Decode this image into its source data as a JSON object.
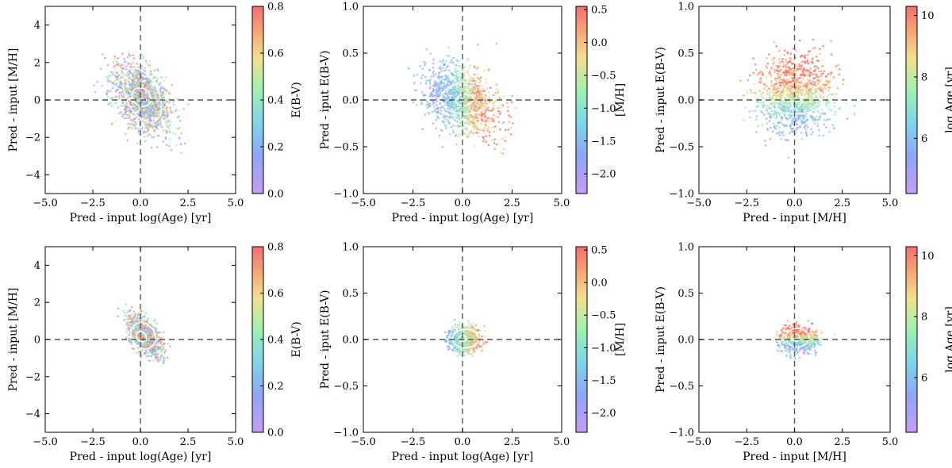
{
  "figure": {
    "grid": false
  },
  "chart_data": [
    {
      "type": "scatter",
      "panel": "top-left",
      "xlabel": "Pred - input log(Age) [yr]",
      "ylabel": "Pred - input [M/H]",
      "xlim": [
        -5,
        5
      ],
      "ylim": [
        -5,
        5
      ],
      "xticks": [
        "−5.0",
        "−2.5",
        "0.0",
        "2.5",
        "5.0"
      ],
      "yticks": [
        "−4",
        "−2",
        "0",
        "2",
        "4"
      ],
      "colorbar": {
        "label": "E(B-V)",
        "range": [
          0.0,
          0.8
        ],
        "ticks": [
          "0.0",
          "0.2",
          "0.4",
          "0.6",
          "0.8"
        ]
      },
      "reference_lines": {
        "x": 0,
        "y": 0
      },
      "cloud": {
        "cx": 0.1,
        "cy": 0.1,
        "sx": 0.75,
        "sy": 0.95,
        "rho": -0.5,
        "n": 1400,
        "xclip": [
          -3.5,
          3.5
        ],
        "yclip": [
          -3.5,
          2.6
        ],
        "color_mode": "uniform"
      },
      "contours": [
        {
          "cx": 0.05,
          "cy": 0.15,
          "rx": 0.45,
          "ry": 0.55,
          "rot": -50
        },
        {
          "cx": 0.1,
          "cy": 0.25,
          "rx": 0.85,
          "ry": 1.55,
          "rot": -25
        }
      ]
    },
    {
      "type": "scatter",
      "panel": "top-middle",
      "xlabel": "Pred - input log(Age) [yr]",
      "ylabel": "Pred - iput E(B-V)",
      "xlim": [
        -5,
        5
      ],
      "ylim": [
        -1,
        1
      ],
      "xticks": [
        "−5.0",
        "−2.5",
        "0.0",
        "2.5",
        "5.0"
      ],
      "yticks": [
        "−1.0",
        "−0.5",
        "0.0",
        "0.5",
        "1.0"
      ],
      "colorbar": {
        "label": "[M/H]",
        "range": [
          -2.3,
          0.55
        ],
        "ticks": [
          "−2.0",
          "−1.5",
          "−1.0",
          "−0.5",
          "0.0",
          "0.5"
        ]
      },
      "reference_lines": {
        "x": 0,
        "y": 0
      },
      "cloud": {
        "cx": 0.0,
        "cy": 0.0,
        "sx": 0.9,
        "sy": 0.18,
        "rho": -0.35,
        "n": 1300,
        "xclip": [
          -3.6,
          3.5
        ],
        "yclip": [
          -0.7,
          0.75
        ],
        "color_mode": "xpos"
      },
      "contours": [
        {
          "cx": 0.1,
          "cy": 0.0,
          "rx": 0.45,
          "ry": 0.06,
          "rot": -8
        },
        {
          "cx": 0.2,
          "cy": 0.02,
          "rx": 1.3,
          "ry": 0.17,
          "rot": -4
        }
      ]
    },
    {
      "type": "scatter",
      "panel": "top-right",
      "xlabel": "Pred - input [M/H]",
      "ylabel": "Pred - input E(B-V)",
      "xlim": [
        -5,
        5
      ],
      "ylim": [
        -1,
        1
      ],
      "xticks": [
        "−5.0",
        "−2.5",
        "0.0",
        "2.5",
        "5.0"
      ],
      "yticks": [
        "−1.0",
        "−0.5",
        "0.0",
        "0.5",
        "1.0"
      ],
      "colorbar": {
        "label": "log Age [yr]",
        "range": [
          4.2,
          10.3
        ],
        "ticks": [
          "6",
          "8",
          "10"
        ]
      },
      "reference_lines": {
        "x": 0,
        "y": 0
      },
      "cloud": {
        "cx": 0.0,
        "cy": 0.05,
        "sx": 0.95,
        "sy": 0.2,
        "rho": 0.0,
        "n": 1300,
        "xclip": [
          -3.2,
          3.2
        ],
        "yclip": [
          -0.8,
          0.85
        ],
        "color_mode": "ypos"
      },
      "contours": [
        {
          "cx": 0.0,
          "cy": 0.08,
          "rx": 0.5,
          "ry": 0.1,
          "rot": 0
        },
        {
          "cx": 0.05,
          "cy": 0.05,
          "rx": 1.6,
          "ry": 0.2,
          "rot": 0
        }
      ]
    },
    {
      "type": "scatter",
      "panel": "bottom-left",
      "xlabel": "Pred - input log(Age) [yr]",
      "ylabel": "Pred - input [M/H]",
      "xlim": [
        -5,
        5
      ],
      "ylim": [
        -5,
        5
      ],
      "xticks": [
        "−5.0",
        "−2.5",
        "0.0",
        "2.5",
        "5.0"
      ],
      "yticks": [
        "−4",
        "−2",
        "0",
        "2",
        "4"
      ],
      "colorbar": {
        "label": "E(B-V)",
        "range": [
          0.0,
          0.8
        ],
        "ticks": [
          "0.0",
          "0.2",
          "0.4",
          "0.6",
          "0.8"
        ]
      },
      "reference_lines": {
        "x": 0,
        "y": 0
      },
      "cloud": {
        "cx": 0.2,
        "cy": 0.2,
        "sx": 0.45,
        "sy": 0.55,
        "rho": -0.55,
        "n": 900,
        "xclip": [
          -1.2,
          1.8
        ],
        "yclip": [
          -1.3,
          2.3
        ],
        "color_mode": "uniform"
      },
      "contours": [
        {
          "cx": 0.05,
          "cy": 0.15,
          "rx": 0.25,
          "ry": 0.3,
          "rot": -30
        },
        {
          "cx": 0.15,
          "cy": 0.2,
          "rx": 0.6,
          "ry": 0.75,
          "rot": -35
        }
      ]
    },
    {
      "type": "scatter",
      "panel": "bottom-middle",
      "xlabel": "Pred - input log(Age) [yr]",
      "ylabel": "Pred - iput E(B-V)",
      "xlim": [
        -5,
        5
      ],
      "ylim": [
        -1,
        1
      ],
      "xticks": [
        "−5.0",
        "−2.5",
        "0.0",
        "2.5",
        "5.0"
      ],
      "yticks": [
        "−1.0",
        "−0.5",
        "0.0",
        "0.5",
        "1.0"
      ],
      "colorbar": {
        "label": "[M/H]",
        "range": [
          -2.3,
          0.55
        ],
        "ticks": [
          "−2.0",
          "−1.5",
          "−1.0",
          "−0.5",
          "0.0",
          "0.5"
        ]
      },
      "reference_lines": {
        "x": 0,
        "y": 0
      },
      "cloud": {
        "cx": 0.1,
        "cy": 0.0,
        "sx": 0.4,
        "sy": 0.07,
        "rho": 0.0,
        "n": 700,
        "xclip": [
          -0.9,
          1.9
        ],
        "yclip": [
          -0.3,
          0.25
        ],
        "color_mode": "xpos"
      },
      "contours": [
        {
          "cx": 0.0,
          "cy": 0.01,
          "rx": 0.18,
          "ry": 0.035,
          "rot": 0
        },
        {
          "cx": 0.15,
          "cy": 0.01,
          "rx": 0.65,
          "ry": 0.1,
          "rot": 0
        }
      ]
    },
    {
      "type": "scatter",
      "panel": "bottom-right",
      "xlabel": "Pred - input [M/H]",
      "ylabel": "Pred - input E(B-V)",
      "xlim": [
        -5,
        5
      ],
      "ylim": [
        -1,
        1
      ],
      "xticks": [
        "−5.0",
        "−2.5",
        "0.0",
        "2.5",
        "5.0"
      ],
      "yticks": [
        "−1.0",
        "−0.5",
        "0.0",
        "0.5",
        "1.0"
      ],
      "colorbar": {
        "label": "log Age [yr]",
        "range": [
          4.2,
          10.3
        ],
        "ticks": [
          "6",
          "8",
          "10"
        ]
      },
      "reference_lines": {
        "x": 0,
        "y": 0
      },
      "cloud": {
        "cx": 0.2,
        "cy": 0.0,
        "sx": 0.5,
        "sy": 0.07,
        "rho": 0.0,
        "n": 700,
        "xclip": [
          -1.0,
          2.2
        ],
        "yclip": [
          -0.25,
          0.22
        ],
        "color_mode": "ypos"
      },
      "contours": [
        {
          "cx": 0.05,
          "cy": 0.02,
          "rx": 0.2,
          "ry": 0.04,
          "rot": 0
        },
        {
          "cx": 0.15,
          "cy": 0.02,
          "rx": 0.6,
          "ry": 0.1,
          "rot": 0
        }
      ]
    }
  ]
}
